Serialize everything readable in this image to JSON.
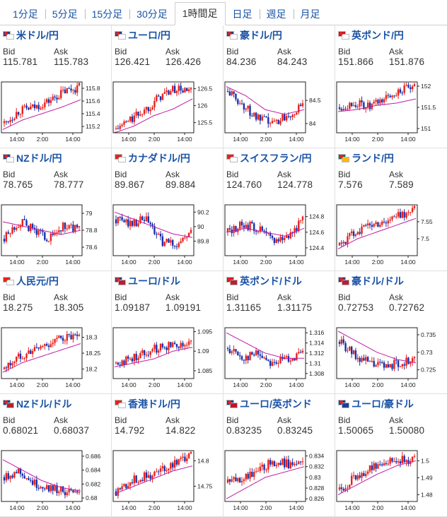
{
  "tabs": [
    {
      "label": "1分足"
    },
    {
      "label": "5分足"
    },
    {
      "label": "15分足"
    },
    {
      "label": "30分足"
    },
    {
      "label": "1時間足",
      "active": true
    },
    {
      "label": "日足"
    },
    {
      "label": "週足"
    },
    {
      "label": "月足"
    }
  ],
  "labels": {
    "bid": "Bid",
    "ask": "Ask"
  },
  "colors": {
    "up": "#e8211c",
    "down": "#1b2fa8",
    "ma": "#c21aa8",
    "link": "#1a53a6"
  },
  "pairs": [
    {
      "name": "米ドル/円",
      "flags": [
        "#1c3f94",
        "#ffffff"
      ],
      "bid": "115.781",
      "ask": "115.783",
      "chart_data": {
        "type": "candlestick",
        "x_ticks": [
          "14:00",
          "2:00",
          "14:00"
        ],
        "y_ticks": [
          "115.8",
          "115.6",
          "115.4",
          "115.2"
        ],
        "ylim": [
          115.1,
          115.9
        ],
        "trend": [
          115.25,
          115.45,
          115.5,
          115.6,
          115.75,
          115.82
        ],
        "ma": [
          115.15,
          115.3,
          115.4,
          115.5,
          115.62
        ]
      }
    },
    {
      "name": "ユーロ/円",
      "flags": [
        "#1c3f94",
        "#ffffff"
      ],
      "bid": "126.421",
      "ask": "126.426",
      "chart_data": {
        "type": "candlestick",
        "x_ticks": [
          "14:00",
          "2:00",
          "14:00"
        ],
        "y_ticks": [
          "126.5",
          "126",
          "125.5"
        ],
        "ylim": [
          125.2,
          126.7
        ],
        "trend": [
          125.3,
          125.6,
          125.9,
          126.3,
          126.5,
          126.4
        ],
        "ma": [
          125.2,
          125.4,
          125.7,
          125.9,
          126.2
        ]
      }
    },
    {
      "name": "豪ドル/円",
      "flags": [
        "#1c3f94",
        "#ffffff"
      ],
      "bid": "84.236",
      "ask": "84.243",
      "chart_data": {
        "type": "candlestick",
        "x_ticks": [
          "14:00",
          "2:00",
          "14:00"
        ],
        "y_ticks": [
          "84.5",
          "84"
        ],
        "ylim": [
          83.8,
          84.9
        ],
        "trend": [
          84.7,
          84.4,
          84.1,
          84.0,
          84.2,
          84.35
        ],
        "ma": [
          84.8,
          84.6,
          84.3,
          84.2,
          84.3
        ]
      }
    },
    {
      "name": "英ポンド/円",
      "flags": [
        "#c8102e",
        "#ffffff"
      ],
      "bid": "151.866",
      "ask": "151.876",
      "chart_data": {
        "type": "candlestick",
        "x_ticks": [
          "14:00",
          "2:00",
          "14:00"
        ],
        "y_ticks": [
          "152",
          "151.5",
          "151"
        ],
        "ylim": [
          150.9,
          152.1
        ],
        "trend": [
          151.5,
          151.6,
          151.5,
          151.7,
          151.9,
          151.95
        ],
        "ma": [
          151.4,
          151.45,
          151.55,
          151.6,
          151.7
        ]
      }
    },
    {
      "name": "NZドル/円",
      "flags": [
        "#1c3f94",
        "#ffffff"
      ],
      "bid": "78.765",
      "ask": "78.777",
      "chart_data": {
        "type": "candlestick",
        "x_ticks": [
          "14:00",
          "2:00",
          "14:00"
        ],
        "y_ticks": [
          "79",
          "78.8",
          "78.6"
        ],
        "ylim": [
          78.5,
          79.1
        ],
        "trend": [
          78.7,
          78.9,
          78.8,
          78.7,
          78.85,
          78.8
        ],
        "ma": [
          78.9,
          78.85,
          78.8,
          78.75,
          78.8
        ]
      }
    },
    {
      "name": "カナダドル/円",
      "flags": [
        "#d52b1e",
        "#ffffff"
      ],
      "bid": "89.867",
      "ask": "89.884",
      "chart_data": {
        "type": "candlestick",
        "x_ticks": [
          "14:00",
          "2:00",
          "14:00"
        ],
        "y_ticks": [
          "90.2",
          "90",
          "89.8"
        ],
        "ylim": [
          89.6,
          90.3
        ],
        "trend": [
          90.1,
          90.05,
          90.1,
          89.8,
          89.75,
          89.9
        ],
        "ma": [
          90.2,
          90.1,
          90.0,
          89.9,
          89.85
        ]
      }
    },
    {
      "name": "スイスフラン/円",
      "flags": [
        "#d52b1e",
        "#ffffff"
      ],
      "bid": "124.760",
      "ask": "124.778",
      "chart_data": {
        "type": "candlestick",
        "x_ticks": [
          "14:00",
          "2:00",
          "14:00"
        ],
        "y_ticks": [
          "124.8",
          "124.6",
          "124.4"
        ],
        "ylim": [
          124.3,
          124.95
        ],
        "trend": [
          124.6,
          124.7,
          124.65,
          124.5,
          124.55,
          124.75
        ],
        "ma": [
          124.6,
          124.65,
          124.6,
          124.55,
          124.65
        ]
      }
    },
    {
      "name": "ランド/円",
      "flags": [
        "#007a4d",
        "#ffb612"
      ],
      "bid": "7.576",
      "ask": "7.589",
      "chart_data": {
        "type": "candlestick",
        "x_ticks": [
          "14:00",
          "2:00",
          "14:00"
        ],
        "y_ticks": [
          "7.55",
          "7.5"
        ],
        "ylim": [
          7.45,
          7.6
        ],
        "trend": [
          7.48,
          7.52,
          7.54,
          7.55,
          7.57,
          7.585
        ],
        "ma": [
          7.47,
          7.5,
          7.52,
          7.54,
          7.56
        ]
      }
    },
    {
      "name": "人民元/円",
      "flags": [
        "#de2910",
        "#ffffff"
      ],
      "bid": "18.275",
      "ask": "18.305",
      "chart_data": {
        "type": "candlestick",
        "x_ticks": [
          "14:00",
          "2:00",
          "14:00"
        ],
        "y_ticks": [
          "18.3",
          "18.25",
          "18.2"
        ],
        "ylim": [
          18.17,
          18.33
        ],
        "trend": [
          18.2,
          18.24,
          18.26,
          18.28,
          18.3,
          18.295
        ],
        "ma": [
          18.19,
          18.22,
          18.24,
          18.26,
          18.28
        ]
      }
    },
    {
      "name": "ユーロ/ドル",
      "flags": [
        "#1c3f94",
        "#b22234"
      ],
      "bid": "1.09187",
      "ask": "1.09191",
      "chart_data": {
        "type": "candlestick",
        "x_ticks": [
          "14:00",
          "2:00",
          "14:00"
        ],
        "y_ticks": [
          "1.095",
          "1.09",
          "1.085"
        ],
        "ylim": [
          1.083,
          1.096
        ],
        "trend": [
          1.087,
          1.088,
          1.09,
          1.091,
          1.092,
          1.0918
        ],
        "ma": [
          1.086,
          1.087,
          1.088,
          1.09,
          1.091
        ]
      }
    },
    {
      "name": "英ポンド/ドル",
      "flags": [
        "#c8102e",
        "#b22234"
      ],
      "bid": "1.31165",
      "ask": "1.31175",
      "chart_data": {
        "type": "candlestick",
        "x_ticks": [
          "14:00",
          "2:00",
          "14:00"
        ],
        "y_ticks": [
          "1.316",
          "1.314",
          "1.312",
          "1.31",
          "1.308"
        ],
        "ylim": [
          1.307,
          1.317
        ],
        "trend": [
          1.313,
          1.311,
          1.312,
          1.31,
          1.311,
          1.3117
        ],
        "ma": [
          1.316,
          1.314,
          1.312,
          1.311,
          1.311
        ]
      }
    },
    {
      "name": "豪ドル/ドル",
      "flags": [
        "#1c3f94",
        "#b22234"
      ],
      "bid": "0.72753",
      "ask": "0.72762",
      "chart_data": {
        "type": "candlestick",
        "x_ticks": [
          "14:00",
          "2:00",
          "14:00"
        ],
        "y_ticks": [
          "0.735",
          "0.73",
          "0.725"
        ],
        "ylim": [
          0.7225,
          0.737
        ],
        "trend": [
          0.733,
          0.729,
          0.727,
          0.726,
          0.727,
          0.7276
        ],
        "ma": [
          0.736,
          0.733,
          0.73,
          0.728,
          0.727
        ]
      }
    },
    {
      "name": "NZドル/ドル",
      "flags": [
        "#1c3f94",
        "#b22234"
      ],
      "bid": "0.68021",
      "ask": "0.68037",
      "chart_data": {
        "type": "candlestick",
        "x_ticks": [
          "14:00",
          "2:00",
          "14:00"
        ],
        "y_ticks": [
          "0.686",
          "0.684",
          "0.682",
          "0.68"
        ],
        "ylim": [
          0.6795,
          0.6868
        ],
        "trend": [
          0.683,
          0.684,
          0.682,
          0.6815,
          0.681,
          0.6803
        ],
        "ma": [
          0.6855,
          0.684,
          0.6825,
          0.6815,
          0.681
        ]
      }
    },
    {
      "name": "香港ドル/円",
      "flags": [
        "#de2910",
        "#ffffff"
      ],
      "bid": "14.792",
      "ask": "14.822",
      "chart_data": {
        "type": "candlestick",
        "x_ticks": [
          "14:00",
          "2:00",
          "14:00"
        ],
        "y_ticks": [
          "14.8",
          "14.75"
        ],
        "ylim": [
          14.72,
          14.82
        ],
        "trend": [
          14.74,
          14.76,
          14.77,
          14.78,
          14.8,
          14.81
        ],
        "ma": [
          14.735,
          14.75,
          14.765,
          14.78,
          14.79
        ]
      }
    },
    {
      "name": "ユーロ/英ポンド",
      "flags": [
        "#1c3f94",
        "#c8102e"
      ],
      "bid": "0.83235",
      "ask": "0.83245",
      "chart_data": {
        "type": "candlestick",
        "x_ticks": [
          "14:00",
          "2:00",
          "14:00"
        ],
        "y_ticks": [
          "0.834",
          "0.832",
          "0.83",
          "0.828",
          "0.826"
        ],
        "ylim": [
          0.8255,
          0.835
        ],
        "trend": [
          0.829,
          0.83,
          0.831,
          0.833,
          0.8325,
          0.8323
        ],
        "ma": [
          0.826,
          0.828,
          0.83,
          0.831,
          0.832
        ]
      }
    },
    {
      "name": "ユーロ/豪ドル",
      "flags": [
        "#1c3f94",
        "#1c3f94"
      ],
      "bid": "1.50065",
      "ask": "1.50080",
      "chart_data": {
        "type": "candlestick",
        "x_ticks": [
          "14:00",
          "2:00",
          "14:00"
        ],
        "y_ticks": [
          "1.5",
          "1.49",
          "1.48"
        ],
        "ylim": [
          1.476,
          1.506
        ],
        "trend": [
          1.483,
          1.49,
          1.495,
          1.5,
          1.501,
          1.5006
        ],
        "ma": [
          1.48,
          1.486,
          1.492,
          1.497,
          1.5
        ]
      }
    }
  ]
}
